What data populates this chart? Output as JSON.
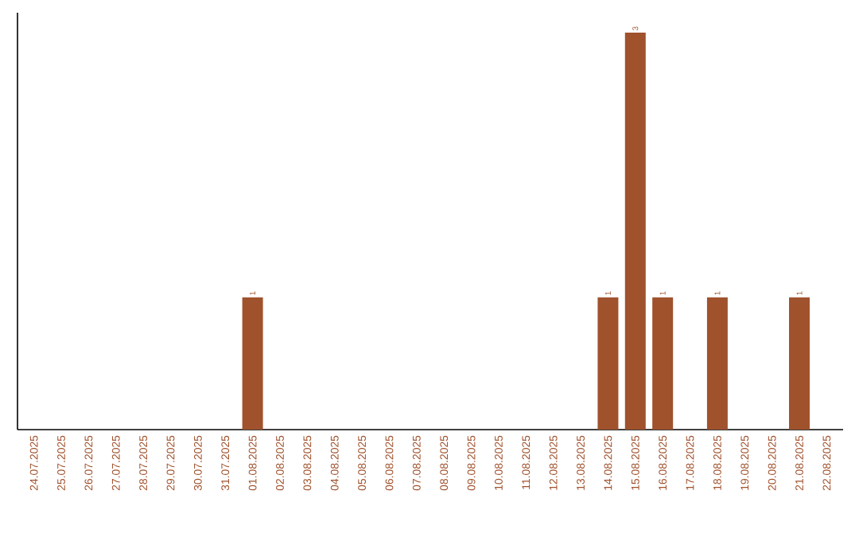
{
  "chart_data": {
    "type": "bar",
    "categories": [
      "24.07.2025",
      "25.07.2025",
      "26.07.2025",
      "27.07.2025",
      "28.07.2025",
      "29.07.2025",
      "30.07.2025",
      "31.07.2025",
      "01.08.2025",
      "02.08.2025",
      "03.08.2025",
      "04.08.2025",
      "05.08.2025",
      "06.08.2025",
      "07.08.2025",
      "08.08.2025",
      "09.08.2025",
      "10.08.2025",
      "11.08.2025",
      "12.08.2025",
      "13.08.2025",
      "14.08.2025",
      "15.08.2025",
      "16.08.2025",
      "17.08.2025",
      "18.08.2025",
      "19.08.2025",
      "20.08.2025",
      "21.08.2025",
      "22.08.2025"
    ],
    "values": [
      0,
      0,
      0,
      0,
      0,
      0,
      0,
      0,
      1,
      0,
      0,
      0,
      0,
      0,
      0,
      0,
      0,
      0,
      0,
      0,
      0,
      1,
      3,
      1,
      0,
      1,
      0,
      0,
      1,
      0
    ],
    "value_labels": [
      null,
      null,
      null,
      null,
      null,
      null,
      null,
      null,
      "1",
      null,
      null,
      null,
      null,
      null,
      null,
      null,
      null,
      null,
      null,
      null,
      null,
      "1",
      "3",
      "1",
      null,
      "1",
      null,
      null,
      "1",
      null
    ],
    "color": "#a0522d"
  }
}
